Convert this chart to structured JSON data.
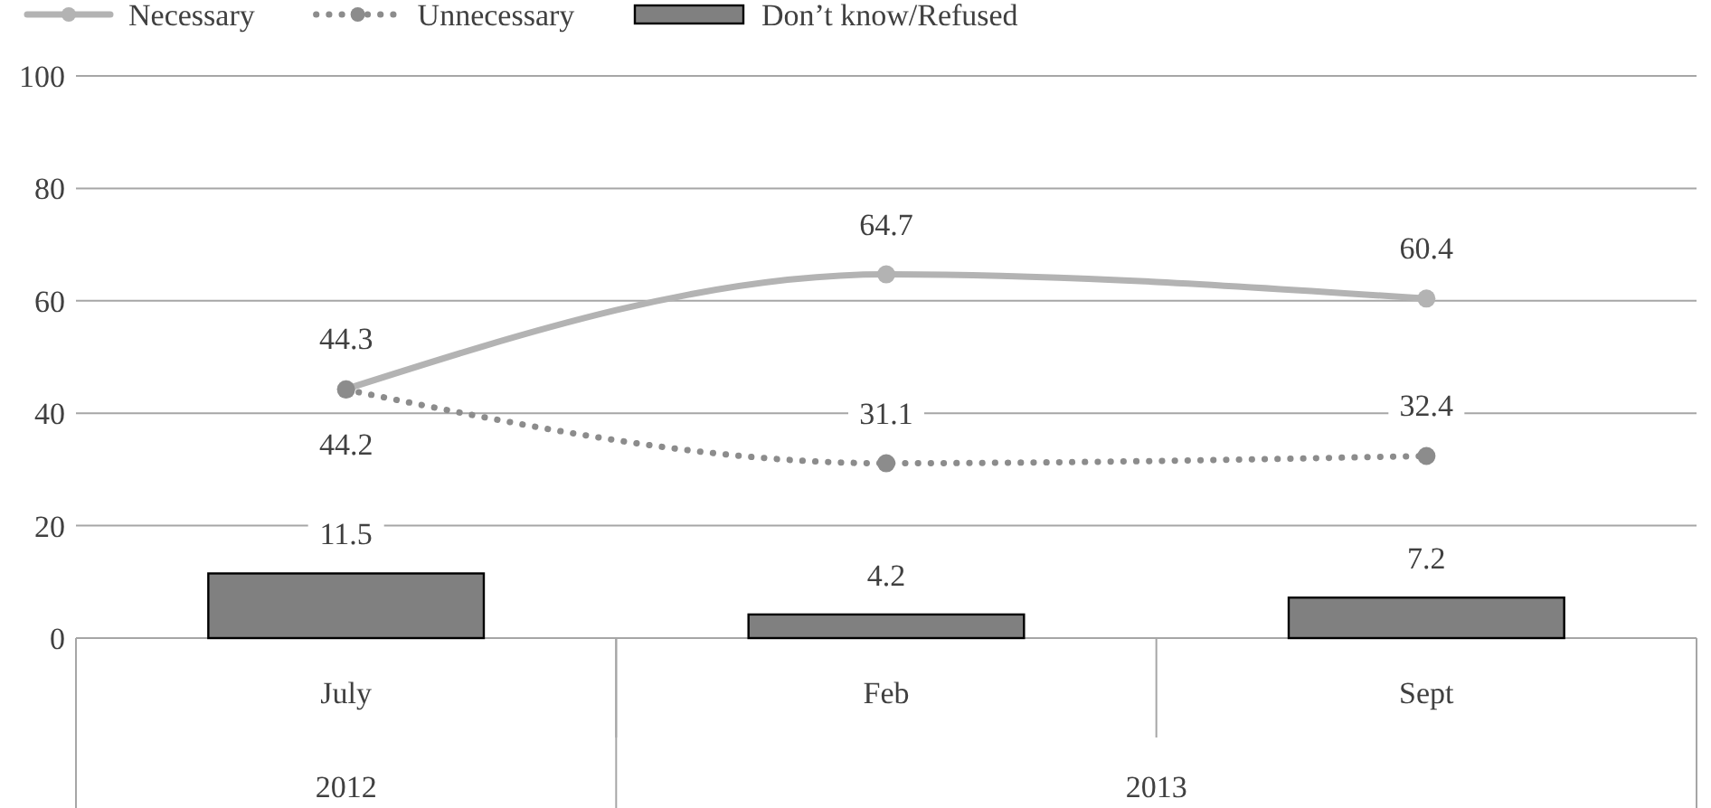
{
  "chart_data": {
    "type": "bar",
    "categories": [
      "July",
      "Feb",
      "Sept"
    ],
    "series": [
      {
        "name": "Necessary",
        "type": "line",
        "color": "#b3b3b3",
        "line_style": "solid",
        "marker": "circle",
        "values": [
          44.3,
          64.7,
          60.4
        ]
      },
      {
        "name": "Unnecessary",
        "type": "line",
        "color": "#8c8c8c",
        "line_style": "dotted",
        "marker": "circle",
        "values": [
          44.2,
          31.1,
          32.4
        ]
      },
      {
        "name": "Don’t know/Refused",
        "color": "#808080",
        "values": [
          11.5,
          4.2,
          7.2
        ]
      }
    ],
    "ylim": [
      0,
      100
    ],
    "yticks": [
      0,
      20,
      40,
      60,
      80,
      100
    ],
    "grid": "y",
    "legend": "top",
    "data_labels": true,
    "annotations": [
      "2012",
      "2013"
    ]
  }
}
